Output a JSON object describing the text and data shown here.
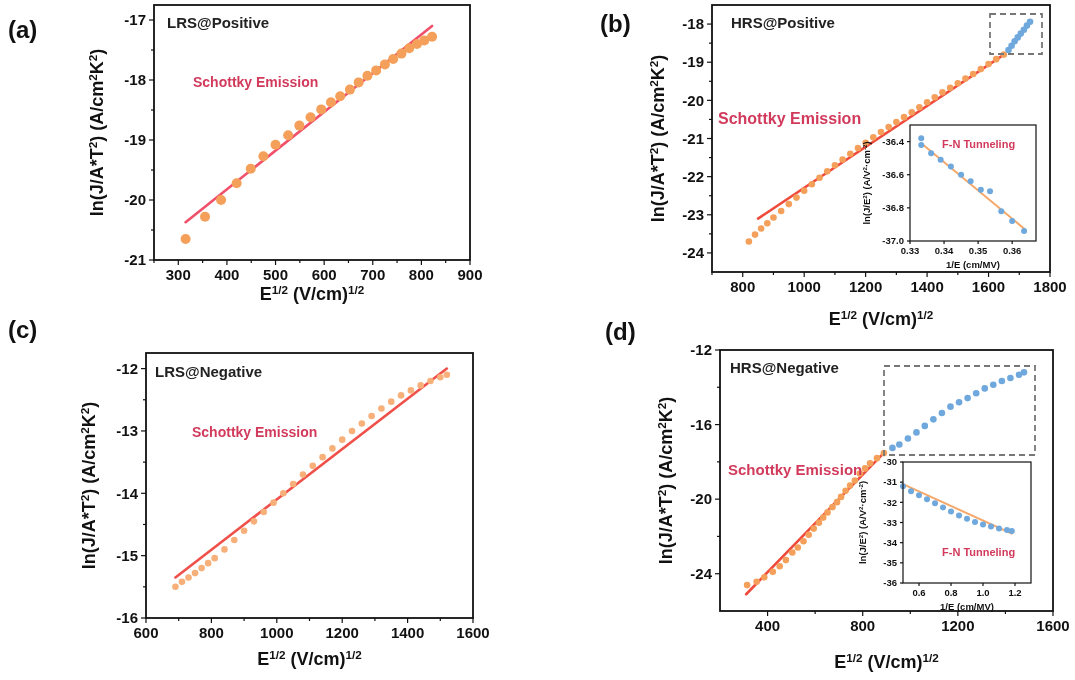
{
  "chart_data": [
    {
      "type": "scatter",
      "title": "(a)",
      "xlabel": "E$^{1/2}$ (V/cm)$^{1/2}$",
      "ylabel": "ln(J/A*T$^{2}$) (A/cm$^{2}$K$^{2}$)",
      "annotations": [
        "LRS@Positive",
        "Schottky Emission"
      ],
      "xlim": [
        250,
        900
      ],
      "xticks": [
        {
          "value": 250,
          "label": null
        },
        300,
        {
          "value": 350,
          "label": null
        },
        400,
        {
          "value": 450,
          "label": null
        },
        500,
        {
          "value": 550,
          "label": null
        },
        600,
        {
          "value": 650,
          "label": null
        },
        700,
        {
          "value": 750,
          "label": null
        },
        800,
        {
          "value": 850,
          "label": null
        },
        900
      ],
      "ylim": [
        -21,
        -16.75
      ],
      "yticks": [
        -21,
        {
          "value": -20.5,
          "label": null
        },
        -20,
        {
          "value": -19.5,
          "label": null
        },
        -19,
        {
          "value": -18.5,
          "label": null
        },
        -18,
        {
          "value": -17.5,
          "label": null
        },
        -17
      ],
      "series": [
        {
          "marker": "circle",
          "color": "#f5a05a",
          "x": [
            315,
            355,
            388,
            420,
            449,
            475,
            500,
            526,
            549,
            572,
            594,
            614,
            633,
            653,
            671,
            689,
            707,
            725,
            742,
            759,
            775,
            791,
            806,
            822
          ],
          "values": [
            -20.65,
            -20.28,
            -20.0,
            -19.72,
            -19.48,
            -19.27,
            -19.08,
            -18.92,
            -18.76,
            -18.62,
            -18.49,
            -18.37,
            -18.27,
            -18.16,
            -18.04,
            -17.93,
            -17.84,
            -17.74,
            -17.65,
            -17.56,
            -17.47,
            -17.4,
            -17.34,
            -17.28
          ]
        },
        {
          "type": "line",
          "color": "#f0506a",
          "x": [
            315,
            822
          ],
          "values": [
            -20.37,
            -17.1
          ]
        }
      ]
    },
    {
      "type": "scatter",
      "title": "(b)",
      "xlabel": "E$^{1/2}$ (V/cm)$^{1/2}$",
      "ylabel": "ln(J/A*T$^{2}$) (A/cm$^{2}$K$^{2}$)",
      "annotations": [
        "HRS@Positive",
        "Schottky Emission"
      ],
      "xlim": [
        700,
        1800
      ],
      "xticks": [
        {
          "value": 700,
          "label": null
        },
        800,
        {
          "value": 900,
          "label": null
        },
        1000,
        {
          "value": 1100,
          "label": null
        },
        1200,
        {
          "value": 1300,
          "label": null
        },
        1400,
        {
          "value": 1500,
          "label": null
        },
        1600,
        {
          "value": 1700,
          "label": null
        },
        1800
      ],
      "ylim": [
        -24.5,
        -17.5
      ],
      "yticks": [
        -24,
        {
          "value": -23.5,
          "label": null
        },
        -23,
        {
          "value": -22.5,
          "label": null
        },
        -22,
        {
          "value": -21.5,
          "label": null
        },
        -21,
        {
          "value": -20.5,
          "label": null
        },
        -20,
        {
          "value": -19.5,
          "label": null
        },
        -19,
        {
          "value": -18.5,
          "label": null
        },
        -18
      ],
      "series": [
        {
          "marker": "circle",
          "color": "#f5a05a",
          "x": [
            820,
            840,
            860,
            880,
            900,
            925,
            950,
            975,
            1000,
            1025,
            1050,
            1075,
            1100,
            1125,
            1150,
            1175,
            1200,
            1225,
            1250,
            1275,
            1300,
            1325,
            1350,
            1375,
            1400,
            1425,
            1450,
            1475,
            1500,
            1525,
            1550,
            1575,
            1600,
            1625,
            1650
          ],
          "values": [
            -23.7,
            -23.52,
            -23.36,
            -23.22,
            -23.07,
            -22.9,
            -22.72,
            -22.55,
            -22.37,
            -22.2,
            -22.03,
            -21.86,
            -21.7,
            -21.55,
            -21.4,
            -21.25,
            -21.11,
            -20.97,
            -20.83,
            -20.7,
            -20.57,
            -20.44,
            -20.31,
            -20.18,
            -20.05,
            -19.92,
            -19.79,
            -19.67,
            -19.55,
            -19.43,
            -19.31,
            -19.18,
            -19.05,
            -18.92,
            -18.8
          ]
        },
        {
          "marker": "circle",
          "color": "#6fa8dc",
          "x": [
            1665,
            1675,
            1685,
            1695,
            1705,
            1715,
            1725,
            1735
          ],
          "values": [
            -18.68,
            -18.57,
            -18.45,
            -18.35,
            -18.25,
            -18.15,
            -18.04,
            -17.94
          ]
        },
        {
          "type": "line",
          "color": "#ef4b3c",
          "x": [
            850,
            1650
          ],
          "values": [
            -23.1,
            -18.8
          ]
        }
      ]
    },
    {
      "type": "scatter",
      "xlabel": "1/E (cm/MV)",
      "ylabel": "ln(J/E$^{2}$) (A/V$^{2}$·cm$^{-2}$)",
      "annotations": [
        "F-N Tunneling"
      ],
      "xlim": [
        0.33,
        0.367
      ],
      "xticks": [
        0.33,
        0.34,
        0.35,
        0.36
      ],
      "ylim": [
        -37.0,
        -36.3
      ],
      "yticks": [
        {
          "value": -37.0,
          "label": "-37.0"
        },
        -36.8,
        -36.6,
        -36.4
      ],
      "series": [
        {
          "marker": "circle",
          "color": "#6fa8dc",
          "x": [
            0.3333,
            0.3333,
            0.3362,
            0.339,
            0.342,
            0.345,
            0.3478,
            0.3508,
            0.3535,
            0.3568,
            0.36,
            0.3635
          ],
          "values": [
            -36.38,
            -36.42,
            -36.47,
            -36.51,
            -36.55,
            -36.6,
            -36.64,
            -36.69,
            -36.7,
            -36.82,
            -36.88,
            -36.94
          ]
        },
        {
          "type": "line",
          "color": "#f5a86a",
          "x": [
            0.3333,
            0.3638
          ],
          "values": [
            -36.41,
            -36.93
          ]
        }
      ]
    },
    {
      "type": "scatter",
      "title": "(c)",
      "xlabel": "E$^{1/2}$ (V/cm)$^{1/2}$",
      "ylabel": "ln(J/A*T$^{2}$) (A/cm$^{2}$K$^{2}$)",
      "annotations": [
        "LRS@Negative",
        "Schottky Emission"
      ],
      "xlim": [
        600,
        1600
      ],
      "xticks": [
        600,
        {
          "value": 700,
          "label": null
        },
        800,
        {
          "value": 900,
          "label": null
        },
        1000,
        {
          "value": 1100,
          "label": null
        },
        1200,
        {
          "value": 1300,
          "label": null
        },
        1400,
        {
          "value": 1500,
          "label": null
        },
        1600
      ],
      "ylim": [
        -16,
        -11.75
      ],
      "yticks": [
        -16,
        {
          "value": -15.5,
          "label": null
        },
        -15,
        {
          "value": -14.5,
          "label": null
        },
        -14,
        {
          "value": -13.5,
          "label": null
        },
        -13,
        {
          "value": -12.5,
          "label": null
        },
        -12
      ],
      "series": [
        {
          "marker": "circle",
          "color": "#f7b07a",
          "x": [
            690,
            710,
            730,
            750,
            770,
            790,
            810,
            840,
            870,
            900,
            930,
            960,
            990,
            1020,
            1050,
            1080,
            1110,
            1140,
            1170,
            1200,
            1230,
            1260,
            1290,
            1320,
            1350,
            1380,
            1410,
            1440,
            1470,
            1500,
            1520
          ],
          "values": [
            -15.5,
            -15.42,
            -15.35,
            -15.28,
            -15.2,
            -15.12,
            -15.04,
            -14.9,
            -14.75,
            -14.6,
            -14.45,
            -14.3,
            -14.15,
            -14.0,
            -13.85,
            -13.7,
            -13.56,
            -13.42,
            -13.28,
            -13.14,
            -13.0,
            -12.88,
            -12.76,
            -12.64,
            -12.53,
            -12.43,
            -12.35,
            -12.27,
            -12.2,
            -12.14,
            -12.1
          ]
        },
        {
          "type": "line",
          "color": "#f0504a",
          "x": [
            690,
            1520
          ],
          "values": [
            -15.35,
            -12.0
          ]
        }
      ]
    },
    {
      "type": "scatter",
      "title": "(d)",
      "xlabel": "E$^{1/2}$ (V/cm)$^{1/2}$",
      "ylabel": "ln(J/A*T$^{2}$) (A/cm$^{2}$K$^{2}$)",
      "annotations": [
        "HRS@Negative",
        "Schottky Emission"
      ],
      "xlim": [
        200,
        1600
      ],
      "xticks": [
        400,
        {
          "value": 600,
          "label": null
        },
        800,
        {
          "value": 1000,
          "label": null
        },
        1200,
        {
          "value": 1400,
          "label": null
        },
        1600
      ],
      "ylim": [
        -26,
        -12
      ],
      "yticks": [
        -24,
        {
          "value": -22,
          "label": null
        },
        -20,
        {
          "value": -18,
          "label": null
        },
        -16,
        {
          "value": -14,
          "label": null
        },
        -12
      ],
      "series": [
        {
          "marker": "circle",
          "color": "#f5a05a",
          "x": [
            314,
            354,
            386,
            422,
            451,
            477,
            504,
            527,
            551,
            573,
            594,
            616,
            634,
            652,
            673,
            692,
            709,
            728,
            747,
            767,
            788,
            810,
            831,
            860,
            889
          ],
          "values": [
            -24.61,
            -24.43,
            -24.19,
            -23.9,
            -23.6,
            -23.27,
            -22.86,
            -22.59,
            -22.26,
            -21.91,
            -21.58,
            -21.26,
            -20.99,
            -20.71,
            -20.43,
            -20.16,
            -19.88,
            -19.55,
            -19.27,
            -19.0,
            -18.63,
            -18.35,
            -18.08,
            -17.8,
            -17.53
          ]
        },
        {
          "marker": "circle",
          "color": "#6fa8dc",
          "x": [
            925,
            954,
            990,
            1026,
            1061,
            1097,
            1133,
            1169,
            1205,
            1241,
            1277,
            1313,
            1349,
            1385,
            1421,
            1457,
            1478
          ],
          "values": [
            -17.25,
            -17.07,
            -16.75,
            -16.42,
            -16.07,
            -15.72,
            -15.38,
            -15.04,
            -14.8,
            -14.58,
            -14.32,
            -14.06,
            -13.86,
            -13.66,
            -13.5,
            -13.33,
            -13.2
          ]
        },
        {
          "type": "line",
          "color": "#ef4b3c",
          "x": [
            310,
            890
          ],
          "values": [
            -25.1,
            -17.5
          ]
        }
      ]
    },
    {
      "type": "scatter",
      "xlabel": "1/E (cm/MV)",
      "ylabel": "ln(J/E$^{2}$) (A/V$^{2}$·cm$^{-2}$)",
      "annotations": [
        "F-N Tunneling"
      ],
      "xlim": [
        0.5,
        1.3
      ],
      "xticks": [
        0.6,
        0.8,
        {
          "value": 1.0,
          "label": "1.0"
        },
        1.2
      ],
      "ylim": [
        -36,
        -30
      ],
      "yticks": [
        -36,
        -35,
        -34,
        -33,
        -32,
        -31,
        -30
      ],
      "series": [
        {
          "marker": "circle",
          "color": "#6fa8dc",
          "x": [
            0.5,
            0.55,
            0.6,
            0.65,
            0.7,
            0.75,
            0.8,
            0.85,
            0.9,
            0.95,
            1.0,
            1.05,
            1.1,
            1.15,
            1.18
          ],
          "values": [
            -31.2,
            -31.45,
            -31.65,
            -31.85,
            -32.05,
            -32.25,
            -32.45,
            -32.65,
            -32.82,
            -32.98,
            -33.1,
            -33.2,
            -33.3,
            -33.37,
            -33.42
          ]
        },
        {
          "type": "line",
          "color": "#f5a86a",
          "x": [
            0.5,
            1.18
          ],
          "values": [
            -31.1,
            -33.55
          ]
        }
      ]
    }
  ]
}
